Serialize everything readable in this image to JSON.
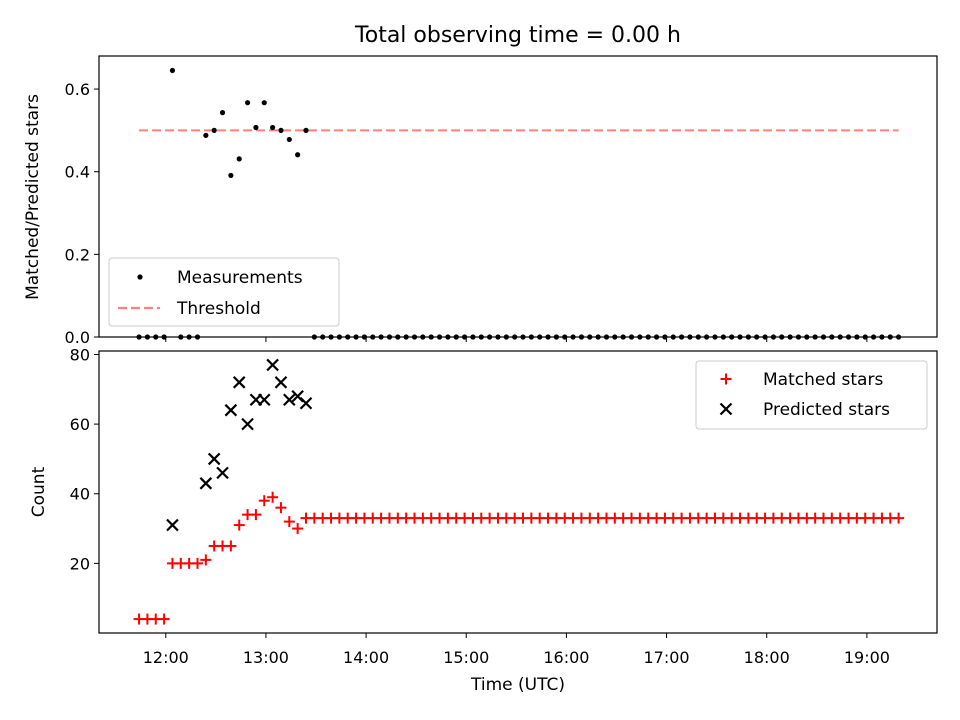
{
  "figure": {
    "title": "Total observing time = 0.00 h"
  },
  "chart_data": [
    {
      "type": "scatter",
      "ylabel": "Matched/Predicted stars",
      "xlim": [
        "11:20",
        "19:42"
      ],
      "ylim": [
        0,
        0.68
      ],
      "yticks": [
        "0.0",
        "0.2",
        "0.4",
        "0.6"
      ],
      "ytick_values": [
        0,
        0.2,
        0.4,
        0.6
      ],
      "legend_position": "lower-left",
      "grid": false,
      "series": [
        {
          "name": "Measurements",
          "marker": "dot",
          "color": "#000000",
          "points": [
            [
              "11:44",
              0
            ],
            [
              "11:49",
              0
            ],
            [
              "11:54",
              0
            ],
            [
              "11:59",
              0
            ],
            [
              "12:04",
              0.645
            ],
            [
              "12:09",
              0
            ],
            [
              "12:14",
              0
            ],
            [
              "12:19",
              0
            ],
            [
              "12:24",
              0.488
            ],
            [
              "12:29",
              0.5
            ],
            [
              "12:34",
              0.543
            ],
            [
              "12:39",
              0.391
            ],
            [
              "12:44",
              0.431
            ],
            [
              "12:49",
              0.567
            ],
            [
              "12:54",
              0.507
            ],
            [
              "12:59",
              0.567
            ],
            [
              "13:04",
              0.507
            ],
            [
              "13:09",
              0.5
            ],
            [
              "13:14",
              0.478
            ],
            [
              "13:19",
              0.441
            ],
            [
              "13:24",
              0.5
            ]
          ],
          "trailing_zero_range": [
            "13:29",
            "19:19"
          ]
        },
        {
          "name": "Threshold",
          "line": "dashed",
          "color": "#ff7f7f",
          "y": 0.5,
          "x_range": [
            "11:44",
            "19:19"
          ]
        }
      ]
    },
    {
      "type": "scatter",
      "xlabel": "Time (UTC)",
      "ylabel": "Count",
      "xlim": [
        "11:20",
        "19:42"
      ],
      "ylim": [
        0,
        81
      ],
      "yticks": [
        "20",
        "40",
        "60",
        "80"
      ],
      "ytick_values": [
        20,
        40,
        60,
        80
      ],
      "xticks": [
        "12:00",
        "13:00",
        "14:00",
        "15:00",
        "16:00",
        "17:00",
        "18:00",
        "19:00"
      ],
      "xtick_values": [
        "12:00",
        "13:00",
        "14:00",
        "15:00",
        "16:00",
        "17:00",
        "18:00",
        "19:00"
      ],
      "legend_position": "top-right",
      "grid": false,
      "series": [
        {
          "name": "Matched stars",
          "marker": "plus",
          "color": "#ff0000",
          "points": [
            [
              "11:44",
              4
            ],
            [
              "11:49",
              4
            ],
            [
              "11:54",
              4
            ],
            [
              "11:59",
              4
            ],
            [
              "12:04",
              20
            ],
            [
              "12:09",
              20
            ],
            [
              "12:14",
              20
            ],
            [
              "12:19",
              20
            ],
            [
              "12:24",
              21
            ],
            [
              "12:29",
              25
            ],
            [
              "12:34",
              25
            ],
            [
              "12:39",
              25
            ],
            [
              "12:44",
              31
            ],
            [
              "12:49",
              34
            ],
            [
              "12:54",
              34
            ],
            [
              "12:59",
              38
            ],
            [
              "13:04",
              39
            ],
            [
              "13:09",
              36
            ],
            [
              "13:14",
              32
            ],
            [
              "13:19",
              30
            ],
            [
              "13:24",
              33
            ]
          ],
          "trailing_constant": {
            "value": 33,
            "x_range": [
              "13:29",
              "19:19"
            ]
          }
        },
        {
          "name": "Predicted stars",
          "marker": "x",
          "color": "#000000",
          "points": [
            [
              "12:04",
              31
            ],
            [
              "12:24",
              43
            ],
            [
              "12:29",
              50
            ],
            [
              "12:34",
              46
            ],
            [
              "12:39",
              64
            ],
            [
              "12:44",
              72
            ],
            [
              "12:49",
              60
            ],
            [
              "12:54",
              67
            ],
            [
              "12:59",
              67
            ],
            [
              "13:04",
              77
            ],
            [
              "13:09",
              72
            ],
            [
              "13:14",
              67
            ],
            [
              "13:19",
              68
            ],
            [
              "13:24",
              66
            ]
          ]
        }
      ]
    }
  ]
}
